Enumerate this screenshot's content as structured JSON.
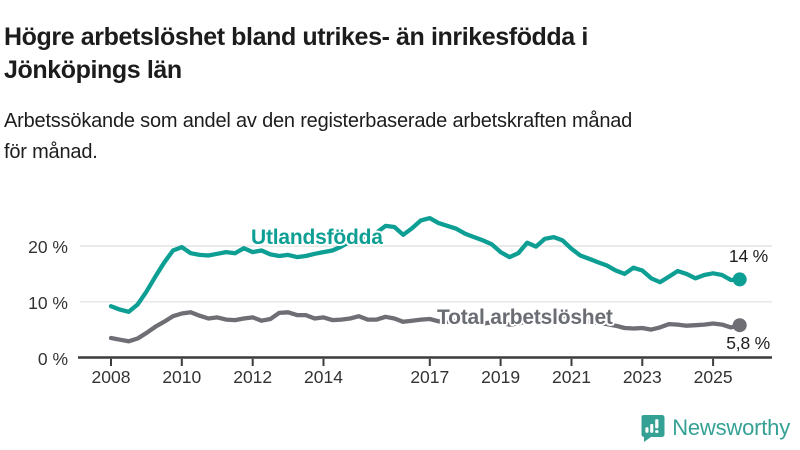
{
  "header": {
    "title_line1": "Högre arbetslöshet bland utrikes- än inrikesfödda i",
    "title_line2": "Jönköpings län",
    "subtitle_line1": "Arbetssökande som andel av den registerbaserade arbetskraften månad",
    "subtitle_line2": "för månad."
  },
  "chart_data": {
    "type": "line",
    "title": "Högre arbetslöshet bland utrikes- än inrikesfödda i Jönköpings län",
    "subtitle": "Arbetssökande som andel av den registerbaserade arbetskraften månad för månad.",
    "x_start": 2008.0,
    "x_step": 0.25,
    "xlim": [
      2008,
      2025.75
    ],
    "ylim": [
      0,
      26
    ],
    "grid": "horizontal",
    "legend_position": "inline-labels",
    "x_ticks": [
      2008,
      2010,
      2012,
      2014,
      2017,
      2019,
      2021,
      2023,
      2025
    ],
    "y_ticks": [
      0,
      10,
      20
    ],
    "y_tick_labels": [
      "0 %",
      "10 %",
      "20 %"
    ],
    "colors": {
      "grid": "#e4e4e4",
      "axis": "#3c3c3c",
      "tick_text": "#333333"
    },
    "series": [
      {
        "name": "Utlandsfödda",
        "color": "#0d9e94",
        "end_label": "14 %",
        "end_value": 14.0,
        "values": [
          9.2,
          8.6,
          8.2,
          9.5,
          11.8,
          14.5,
          17.0,
          19.2,
          19.8,
          18.7,
          18.4,
          18.3,
          18.6,
          18.9,
          18.7,
          19.6,
          18.9,
          19.2,
          18.5,
          18.2,
          18.4,
          18.0,
          18.2,
          18.6,
          18.9,
          19.2,
          19.9,
          20.8,
          21.3,
          21.8,
          22.4,
          23.6,
          23.4,
          22.0,
          23.2,
          24.6,
          25.0,
          24.1,
          23.6,
          23.1,
          22.2,
          21.6,
          21.0,
          20.3,
          18.9,
          18.0,
          18.7,
          20.6,
          19.9,
          21.3,
          21.6,
          21.0,
          19.5,
          18.3,
          17.7,
          17.1,
          16.5,
          15.6,
          15.0,
          16.1,
          15.6,
          14.2,
          13.5,
          14.5,
          15.5,
          15.0,
          14.2,
          14.8,
          15.1,
          14.8,
          13.9,
          14.0
        ]
      },
      {
        "name": "Total arbetslöshet",
        "color": "#6e6e74",
        "end_label": "5,8 %",
        "end_value": 5.8,
        "values": [
          3.5,
          3.2,
          2.9,
          3.4,
          4.4,
          5.5,
          6.4,
          7.4,
          7.9,
          8.1,
          7.5,
          7.0,
          7.2,
          6.8,
          6.7,
          7.0,
          7.2,
          6.6,
          6.9,
          8.0,
          8.1,
          7.6,
          7.6,
          7.0,
          7.2,
          6.7,
          6.8,
          7.0,
          7.4,
          6.8,
          6.8,
          7.3,
          7.0,
          6.4,
          6.6,
          6.8,
          6.9,
          6.5,
          6.4,
          6.6,
          6.5,
          6.2,
          6.1,
          6.3,
          6.2,
          5.9,
          6.1,
          6.5,
          6.8,
          7.6,
          7.8,
          7.5,
          7.2,
          6.8,
          6.4,
          6.2,
          6.0,
          5.7,
          5.3,
          5.2,
          5.3,
          5.0,
          5.4,
          6.0,
          5.9,
          5.7,
          5.8,
          5.9,
          6.1,
          5.9,
          5.4,
          5.8
        ]
      }
    ]
  },
  "branding": {
    "name": "Newsworthy",
    "color": "#35a195"
  }
}
